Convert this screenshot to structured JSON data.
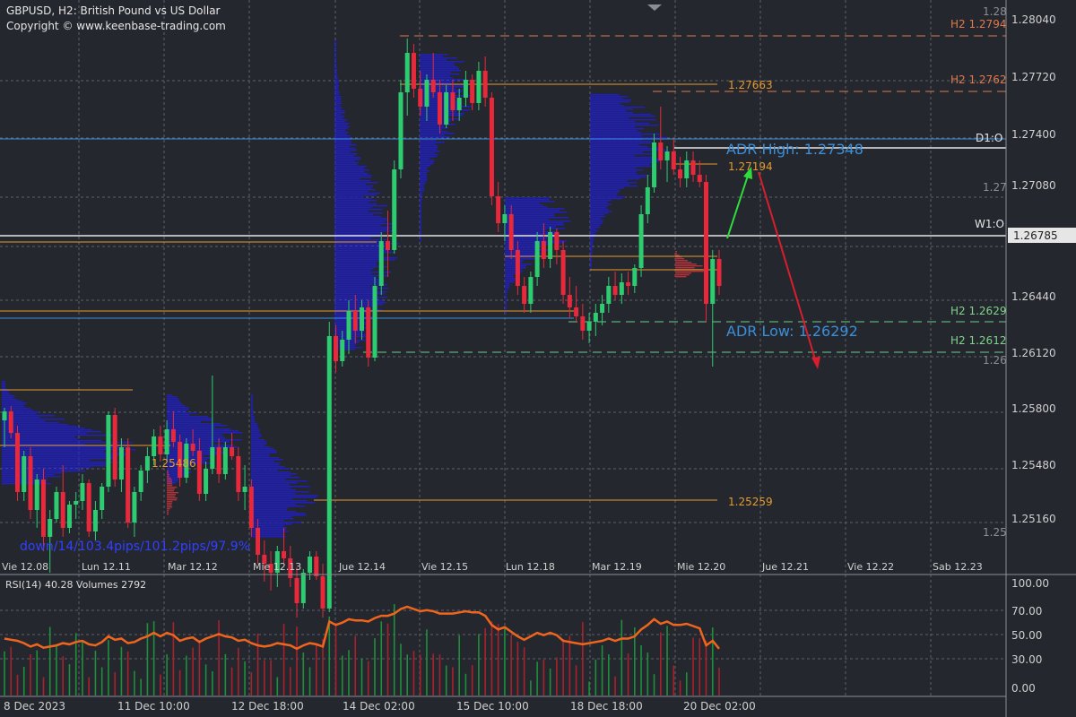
{
  "header": {
    "title": "GBPUSD, H2:  British Pound vs US Dollar",
    "copyright": "Copyright © www.keenbase-trading.com"
  },
  "colors": {
    "background": "#25272e",
    "grid": "#5d6068",
    "bull_candle": "#2ecc71",
    "bear_candle": "#e8293b",
    "volume_profile": "#1f1fc4",
    "volume_profile_red": "#b0323a",
    "level_orange": "#e69b2e",
    "level_blue": "#3a8fd9",
    "adr_text": "#3a8fd9",
    "rsi_line": "#f0651d",
    "arrow_up": "#2fdc3c",
    "arrow_down": "#d81e2c",
    "white_level": "#e6e6e6"
  },
  "price_axis": {
    "labels": [
      "1.28040",
      "1.27720",
      "1.27400",
      "1.27080",
      "1.26440",
      "1.26120",
      "1.25800",
      "1.25480",
      "1.25160"
    ],
    "top_label": "1.28",
    "current_price": "1.26785",
    "round_levels": [
      "1.27",
      "1.26",
      "1.25"
    ]
  },
  "time_axis": {
    "labels": [
      "Vie 12.08",
      "Lun 12.11",
      "Mar 12.12",
      "Mie 12.13",
      "Jue 12.14",
      "Vie 12.15",
      "Lun 12.18",
      "Mar 12.19",
      "Mie 12.20",
      "Jue 12.21",
      "Vie 12.22",
      "Sab 12.23"
    ]
  },
  "bottom_axis": {
    "labels": [
      "8 Dec 2023",
      "11 Dec 10:00",
      "12 Dec 18:00",
      "14 Dec 02:00",
      "15 Dec 10:00",
      "18 Dec 18:00",
      "20 Dec 02:00"
    ]
  },
  "levels": {
    "h2_1": "H2 1.2794",
    "h2_2": "H2 1.2762",
    "d1": "D1:O",
    "w1": "W1:O",
    "h2_3": "H2 1.2629",
    "h2_4": "H2 1.2612",
    "poc_1": "1.27663",
    "poc_2": "1.27194",
    "poc_3": "1.25486",
    "poc_4": "1.25259",
    "adr_high": "ADR High: 1.27348",
    "adr_low": "ADR Low: 1.26292"
  },
  "stats_text": "down/14/103.4pips/101.2pips/97.9%",
  "rsi": {
    "header": "RSI(14) 40.28 Volumes 2792",
    "labels": [
      "100.00",
      "70.00",
      "50.00",
      "30.00",
      "0.00"
    ]
  }
}
